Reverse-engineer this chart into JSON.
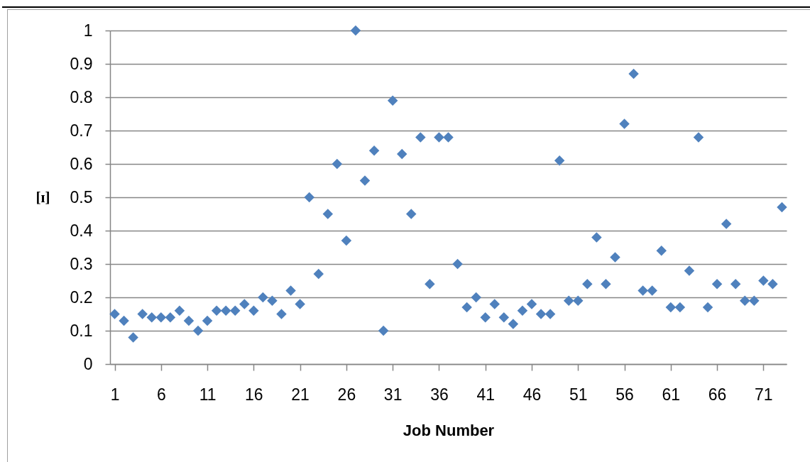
{
  "chart_data": {
    "type": "scatter",
    "xlabel": "Job Number",
    "ylabel": "[ɪ]",
    "x": [
      1,
      2,
      3,
      4,
      5,
      6,
      7,
      8,
      9,
      10,
      11,
      12,
      13,
      14,
      15,
      16,
      17,
      18,
      19,
      20,
      21,
      22,
      23,
      24,
      25,
      26,
      27,
      28,
      29,
      30,
      31,
      32,
      33,
      34,
      35,
      36,
      37,
      38,
      39,
      40,
      41,
      42,
      43,
      44,
      45,
      46,
      47,
      48,
      49,
      50,
      51,
      52,
      53,
      54,
      55,
      56,
      57,
      58,
      59,
      60,
      61,
      62,
      63,
      64,
      65,
      66,
      67,
      68,
      69,
      70,
      71,
      72,
      73
    ],
    "values": [
      0.15,
      0.13,
      0.08,
      0.15,
      0.14,
      0.14,
      0.14,
      0.16,
      0.13,
      0.1,
      0.13,
      0.16,
      0.16,
      0.16,
      0.18,
      0.16,
      0.2,
      0.19,
      0.15,
      0.22,
      0.18,
      0.5,
      0.27,
      0.45,
      0.6,
      0.37,
      1.0,
      0.55,
      0.64,
      0.1,
      0.79,
      0.63,
      0.45,
      0.68,
      0.24,
      0.68,
      0.68,
      0.3,
      0.17,
      0.2,
      0.14,
      0.18,
      0.14,
      0.12,
      0.16,
      0.18,
      0.15,
      0.15,
      0.61,
      0.19,
      0.19,
      0.24,
      0.38,
      0.24,
      0.32,
      0.72,
      0.87,
      0.22,
      0.22,
      0.34,
      0.17,
      0.17,
      0.28,
      0.68,
      0.17,
      0.24,
      0.42,
      0.24,
      0.19,
      0.19,
      0.25,
      0.24,
      0.47
    ],
    "color": "#4f81bd",
    "marker": "diamond",
    "xlim": [
      0.5,
      73.5
    ],
    "xticks": [
      1,
      6,
      11,
      16,
      21,
      26,
      31,
      36,
      41,
      46,
      51,
      56,
      61,
      66,
      71
    ],
    "ylim": [
      0,
      1
    ],
    "yticks": [
      0,
      0.1,
      0.2,
      0.3,
      0.4,
      0.5,
      0.6,
      0.7,
      0.8,
      0.9,
      1
    ],
    "grid": "y"
  }
}
